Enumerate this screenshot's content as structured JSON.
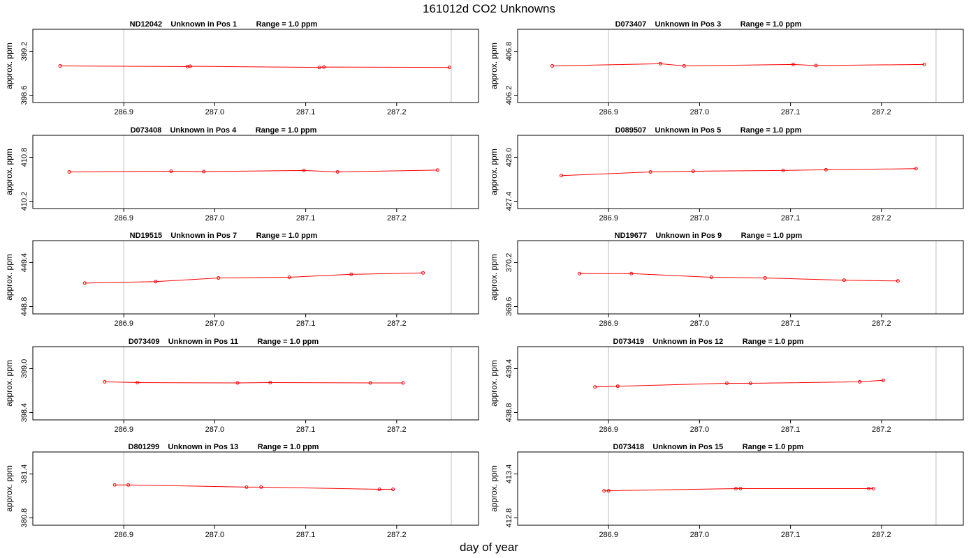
{
  "title": "161012d  CO2 Unknowns",
  "xlabel": "day of year",
  "colors": {
    "series": "#ff0000",
    "frame": "#000000",
    "marker_line": "#bebebe"
  },
  "chart_data": [
    {
      "type": "line",
      "panel_title": "ND12042    Unknown in Pos 1         Range = 1.0 ppm",
      "ylabel": "approx. ppm",
      "xlim": [
        286.8,
        287.29
      ],
      "xticks": [
        "286.9",
        "287.0",
        "287.1",
        "287.2"
      ],
      "ylim": [
        398.5,
        399.5
      ],
      "yticks": [
        "398.6",
        "399.2"
      ],
      "vlines": [
        286.9,
        287.26
      ],
      "x": [
        286.83,
        286.97,
        286.973,
        287.115,
        287.12,
        287.258
      ],
      "y": [
        399.0,
        398.99,
        398.995,
        398.98,
        398.985,
        398.98
      ]
    },
    {
      "type": "line",
      "panel_title": "D073407    Unknown in Pos 3         Range = 1.0 ppm",
      "ylabel": "approx. ppm",
      "xlim": [
        286.8,
        287.29
      ],
      "xticks": [
        "286.9",
        "287.0",
        "287.1",
        "287.2"
      ],
      "ylim": [
        406.1,
        407.1
      ],
      "yticks": [
        "406.2",
        "406.8"
      ],
      "vlines": [
        286.9,
        287.26
      ],
      "x": [
        286.838,
        286.957,
        286.983,
        287.103,
        287.128,
        287.247
      ],
      "y": [
        406.6,
        406.63,
        406.6,
        406.62,
        406.605,
        406.62
      ]
    },
    {
      "type": "line",
      "panel_title": "D073408    Unknown in Pos 4         Range = 1.0 ppm",
      "ylabel": "approx. ppm",
      "xlim": [
        286.8,
        287.29
      ],
      "xticks": [
        "286.9",
        "287.0",
        "287.1",
        "287.2"
      ],
      "ylim": [
        410.1,
        411.1
      ],
      "yticks": [
        "410.2",
        "410.8"
      ],
      "vlines": [
        286.9,
        287.26
      ],
      "x": [
        286.84,
        286.952,
        286.988,
        287.098,
        287.135,
        287.245
      ],
      "y": [
        410.6,
        410.61,
        410.605,
        410.62,
        410.6,
        410.625
      ]
    },
    {
      "type": "line",
      "panel_title": "D089507    Unknown in Pos 5         Range = 1.0 ppm",
      "ylabel": "approx. ppm",
      "xlim": [
        286.8,
        287.29
      ],
      "xticks": [
        "286.9",
        "287.0",
        "287.1",
        "287.2"
      ],
      "ylim": [
        427.3,
        428.3
      ],
      "yticks": [
        "427.4",
        "428.0"
      ],
      "vlines": [
        286.9,
        287.26
      ],
      "x": [
        286.848,
        286.946,
        286.993,
        287.092,
        287.139,
        287.238
      ],
      "y": [
        427.75,
        427.8,
        427.81,
        427.82,
        427.83,
        427.845
      ]
    },
    {
      "type": "line",
      "panel_title": "ND19515    Unknown in Pos 7         Range = 1.0 ppm",
      "ylabel": "approx. ppm",
      "xlim": [
        286.8,
        287.29
      ],
      "xticks": [
        "286.9",
        "287.0",
        "287.1",
        "287.2"
      ],
      "ylim": [
        448.7,
        449.7
      ],
      "yticks": [
        "448.8",
        "449.4"
      ],
      "vlines": [
        286.9,
        287.26
      ],
      "x": [
        286.857,
        286.935,
        287.004,
        287.082,
        287.15,
        287.229
      ],
      "y": [
        449.12,
        449.14,
        449.19,
        449.2,
        449.24,
        449.26
      ]
    },
    {
      "type": "line",
      "panel_title": "ND19677    Unknown in Pos 9         Range = 1.0 ppm",
      "ylabel": "approx. ppm",
      "xlim": [
        286.8,
        287.29
      ],
      "xticks": [
        "286.9",
        "287.0",
        "287.1",
        "287.2"
      ],
      "ylim": [
        369.5,
        370.5
      ],
      "yticks": [
        "369.6",
        "370.2"
      ],
      "vlines": [
        286.9,
        287.26
      ],
      "x": [
        286.868,
        286.925,
        287.013,
        287.072,
        287.159,
        287.218
      ],
      "y": [
        370.05,
        370.05,
        370.0,
        369.99,
        369.96,
        369.95
      ]
    },
    {
      "type": "line",
      "panel_title": "D073409    Unknown in Pos 11         Range = 1.0 ppm",
      "ylabel": "approx. ppm",
      "xlim": [
        286.8,
        287.29
      ],
      "xticks": [
        "286.9",
        "287.0",
        "287.1",
        "287.2"
      ],
      "ylim": [
        398.3,
        399.3
      ],
      "yticks": [
        "398.4",
        "399.0"
      ],
      "vlines": [
        286.9,
        287.26
      ],
      "x": [
        286.879,
        286.915,
        287.025,
        287.061,
        287.171,
        287.207
      ],
      "y": [
        398.82,
        398.81,
        398.805,
        398.81,
        398.805,
        398.805
      ]
    },
    {
      "type": "line",
      "panel_title": "D073419    Unknown in Pos 12         Range = 1.0 ppm",
      "ylabel": "approx. ppm",
      "xlim": [
        286.8,
        287.29
      ],
      "xticks": [
        "286.9",
        "287.0",
        "287.1",
        "287.2"
      ],
      "ylim": [
        438.7,
        439.7
      ],
      "yticks": [
        "438.8",
        "439.4"
      ],
      "vlines": [
        286.9,
        287.26
      ],
      "x": [
        286.885,
        286.91,
        287.03,
        287.056,
        287.176,
        287.202
      ],
      "y": [
        439.15,
        439.16,
        439.2,
        439.2,
        439.22,
        439.24
      ]
    },
    {
      "type": "line",
      "panel_title": "D801299    Unknown in Pos 13         Range = 1.0 ppm",
      "ylabel": "approx. ppm",
      "xlim": [
        286.8,
        287.29
      ],
      "xticks": [
        "286.9",
        "287.0",
        "287.1",
        "287.2"
      ],
      "ylim": [
        380.7,
        381.7
      ],
      "yticks": [
        "380.8",
        "381.4"
      ],
      "vlines": [
        286.9,
        287.26
      ],
      "x": [
        286.89,
        286.905,
        287.035,
        287.051,
        287.181,
        287.196
      ],
      "y": [
        381.25,
        381.25,
        381.22,
        381.22,
        381.19,
        381.19
      ]
    },
    {
      "type": "line",
      "panel_title": "D073418    Unknown in Pos 15         Range = 1.0 ppm",
      "ylabel": "approx. ppm",
      "xlim": [
        286.8,
        287.29
      ],
      "xticks": [
        "286.9",
        "287.0",
        "287.1",
        "287.2"
      ],
      "ylim": [
        412.7,
        413.7
      ],
      "yticks": [
        "412.8",
        "413.4"
      ],
      "vlines": [
        286.9,
        287.26
      ],
      "x": [
        286.895,
        286.9,
        287.04,
        287.045,
        287.186,
        287.191
      ],
      "y": [
        413.17,
        413.17,
        413.2,
        413.2,
        413.2,
        413.2
      ]
    }
  ]
}
